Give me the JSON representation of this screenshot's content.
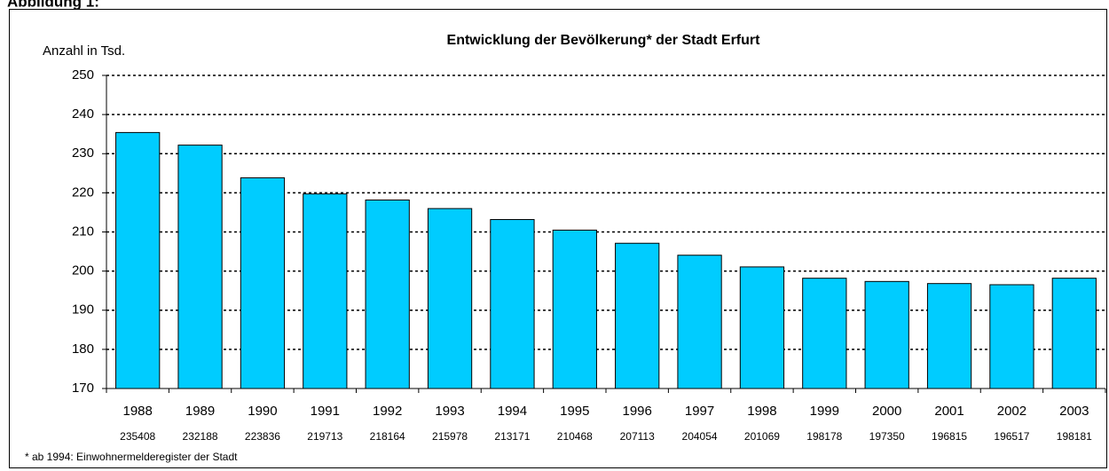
{
  "header": "Abbildung 1:",
  "chart_data": {
    "type": "bar",
    "title": "Entwicklung der Bevölkerung* der Stadt Erfurt",
    "y_label": "Anzahl in Tsd.",
    "footnote": "* ab 1994: Einwohnermelderegister der Stadt",
    "categories": [
      "1988",
      "1989",
      "1990",
      "1991",
      "1992",
      "1993",
      "1994",
      "1995",
      "1996",
      "1997",
      "1998",
      "1999",
      "2000",
      "2001",
      "2002",
      "2003"
    ],
    "values": [
      235.408,
      232.188,
      223.836,
      219.713,
      218.164,
      215.978,
      213.171,
      210.468,
      207.113,
      204.054,
      201.069,
      198.178,
      197.35,
      196.815,
      196.517,
      198.181
    ],
    "value_labels": [
      "235408",
      "232188",
      "223836",
      "219713",
      "218164",
      "215978",
      "213171",
      "210468",
      "207113",
      "204054",
      "201069",
      "198178",
      "197350",
      "196815",
      "196517",
      "198181"
    ],
    "color": "#00ccff",
    "ylim": [
      170,
      250
    ],
    "yticks": [
      170,
      180,
      190,
      200,
      210,
      220,
      230,
      240,
      250
    ],
    "grid": true
  }
}
